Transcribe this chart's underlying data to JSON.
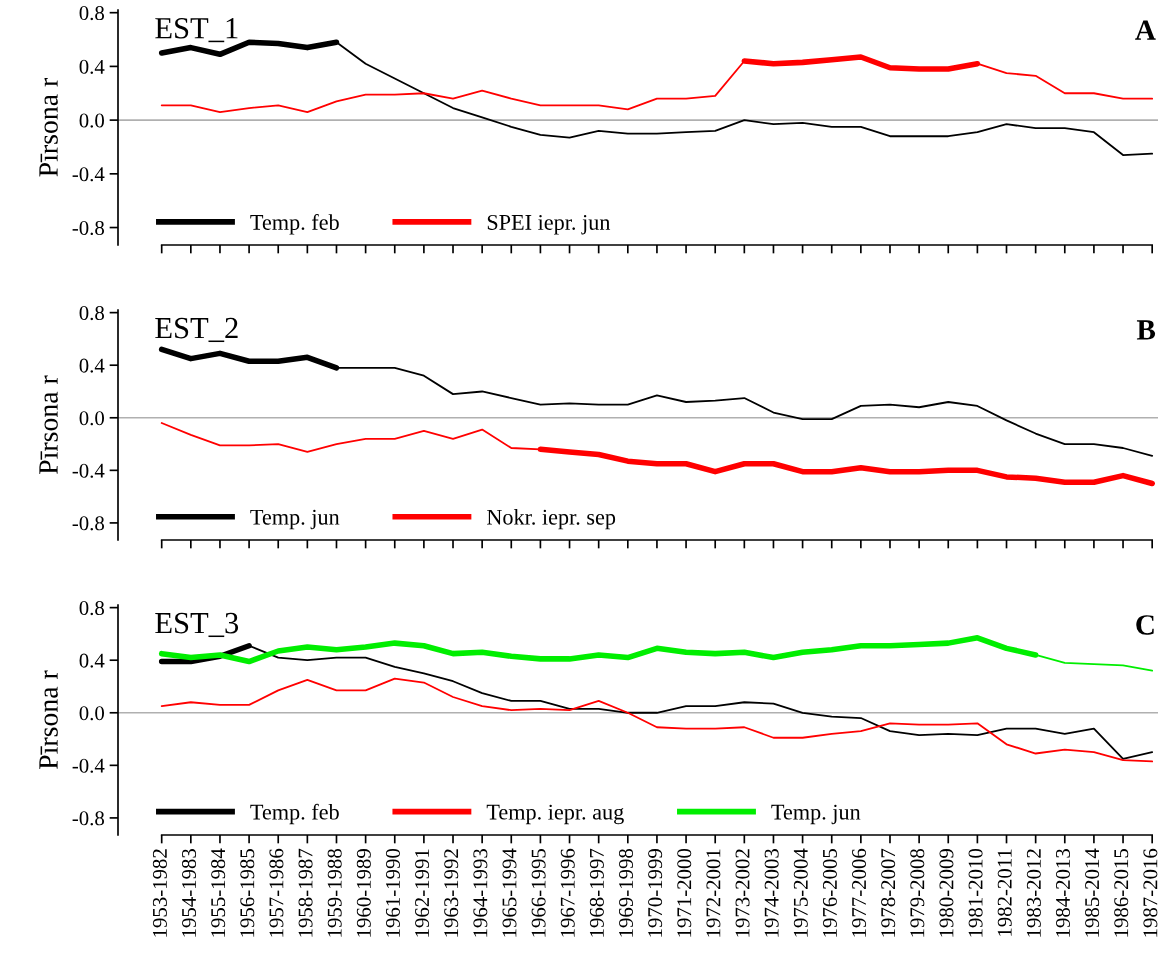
{
  "chart_data": [
    {
      "type": "line",
      "title": "EST_1",
      "ylabel": "Pīrsona r",
      "annotations": [
        "A"
      ],
      "tick_labels": "y",
      "categories": [
        null,
        null,
        null,
        null,
        null,
        null,
        null,
        null,
        null,
        null,
        null,
        null,
        null,
        null,
        null,
        null,
        null,
        null,
        null,
        null,
        null,
        null,
        null,
        null,
        null,
        null,
        null,
        null,
        null,
        null,
        null,
        null,
        null,
        null,
        null
      ],
      "ylim": [
        -0.93,
        0.82
      ],
      "yticks": [
        {
          "value": -0.8,
          "label": "-0.8"
        },
        {
          "value": -0.4,
          "label": "-0.4"
        },
        {
          "value": 0,
          "label": "0.0"
        },
        {
          "value": 0.4,
          "label": "0.4"
        },
        {
          "value": 0.8,
          "label": "0.8"
        }
      ],
      "ref_lines": [
        {
          "axis": "y",
          "value": 0,
          "color": "#b0b0b0"
        }
      ],
      "legend": "bottom",
      "grid": false,
      "series": [
        {
          "color": "#000000",
          "values": [
            0.5,
            0.54,
            0.49,
            0.58,
            0.57,
            0.54,
            0.58,
            0.42,
            0.31,
            0.2,
            0.09,
            0.02,
            -0.05,
            -0.11,
            -0.13,
            -0.08,
            -0.1,
            -0.1,
            -0.09,
            -0.08,
            0.0,
            -0.03,
            -0.02,
            -0.05,
            -0.05,
            -0.12,
            -0.12,
            -0.12,
            -0.09,
            -0.03,
            -0.06,
            -0.06,
            -0.09,
            -0.26,
            -0.25
          ]
        },
        {
          "name": "Temp. feb",
          "color": "#000000",
          "values": [
            0.5,
            0.54,
            0.49,
            0.58,
            0.57,
            0.54,
            0.58,
            null,
            null,
            null,
            null,
            null,
            null,
            null,
            null,
            null,
            null,
            null,
            null,
            null,
            null,
            null,
            null,
            null,
            null,
            null,
            null,
            null,
            null,
            null,
            null,
            null,
            null,
            null,
            null
          ]
        },
        {
          "color": "#ff0000",
          "values": [
            0.11,
            0.11,
            0.06,
            0.09,
            0.11,
            0.06,
            0.14,
            0.19,
            0.19,
            0.2,
            0.16,
            0.22,
            0.16,
            0.11,
            0.11,
            0.11,
            0.08,
            0.16,
            0.16,
            0.18,
            0.44,
            0.42,
            0.43,
            0.45,
            0.47,
            0.39,
            0.38,
            0.38,
            0.42,
            0.35,
            0.33,
            0.2,
            0.2,
            0.16,
            0.16
          ]
        },
        {
          "name": "SPEI iepr. jun",
          "color": "#ff0000",
          "values": [
            null,
            null,
            null,
            null,
            null,
            null,
            null,
            null,
            null,
            null,
            null,
            null,
            null,
            null,
            null,
            null,
            null,
            null,
            null,
            null,
            0.44,
            0.42,
            0.43,
            0.45,
            0.47,
            0.39,
            0.38,
            0.38,
            0.42,
            null,
            null,
            null,
            null,
            null,
            null
          ]
        }
      ]
    },
    {
      "type": "line",
      "title": "EST_2",
      "ylabel": "Pīrsona r",
      "annotations": [
        "B"
      ],
      "tick_labels": "y",
      "categories": [
        null,
        null,
        null,
        null,
        null,
        null,
        null,
        null,
        null,
        null,
        null,
        null,
        null,
        null,
        null,
        null,
        null,
        null,
        null,
        null,
        null,
        null,
        null,
        null,
        null,
        null,
        null,
        null,
        null,
        null,
        null,
        null,
        null,
        null,
        null
      ],
      "ylim": [
        -0.93,
        0.82
      ],
      "yticks": [
        {
          "value": -0.8,
          "label": "-0.8"
        },
        {
          "value": -0.4,
          "label": "-0.4"
        },
        {
          "value": 0,
          "label": "0.0"
        },
        {
          "value": 0.4,
          "label": "0.4"
        },
        {
          "value": 0.8,
          "label": "0.8"
        }
      ],
      "ref_lines": [
        {
          "axis": "y",
          "value": 0,
          "color": "#b0b0b0"
        }
      ],
      "legend": "bottom",
      "grid": false,
      "series": [
        {
          "color": "#000000",
          "values": [
            0.52,
            0.45,
            0.49,
            0.43,
            0.43,
            0.46,
            0.38,
            0.38,
            0.38,
            0.32,
            0.18,
            0.2,
            0.15,
            0.1,
            0.11,
            0.1,
            0.1,
            0.17,
            0.12,
            0.13,
            0.15,
            0.04,
            -0.01,
            -0.01,
            0.09,
            0.1,
            0.08,
            0.12,
            0.09,
            -0.02,
            -0.12,
            -0.2,
            -0.2,
            -0.23,
            -0.29
          ]
        },
        {
          "name": "Temp. jun",
          "color": "#000000",
          "values": [
            0.52,
            0.45,
            0.49,
            0.43,
            0.43,
            0.46,
            0.38,
            null,
            null,
            null,
            null,
            null,
            null,
            null,
            null,
            null,
            null,
            null,
            null,
            null,
            null,
            null,
            null,
            null,
            null,
            null,
            null,
            null,
            null,
            null,
            null,
            null,
            null,
            null,
            null
          ]
        },
        {
          "color": "#ff0000",
          "values": [
            -0.04,
            -0.13,
            -0.21,
            -0.21,
            -0.2,
            -0.26,
            -0.2,
            -0.16,
            -0.16,
            -0.1,
            -0.16,
            -0.09,
            -0.23,
            -0.24,
            -0.26,
            -0.28,
            -0.33,
            -0.35,
            -0.35,
            -0.41,
            -0.35,
            -0.35,
            -0.41,
            -0.41,
            -0.38,
            -0.41,
            -0.41,
            -0.4,
            -0.4,
            -0.45,
            -0.46,
            -0.49,
            -0.49,
            -0.44,
            -0.5
          ]
        },
        {
          "name": "Nokr. iepr. sep",
          "color": "#ff0000",
          "values": [
            null,
            null,
            null,
            null,
            null,
            null,
            null,
            null,
            null,
            null,
            null,
            null,
            null,
            -0.24,
            -0.26,
            -0.28,
            -0.33,
            -0.35,
            -0.35,
            -0.41,
            -0.35,
            -0.35,
            -0.41,
            -0.41,
            -0.38,
            -0.41,
            -0.41,
            -0.4,
            -0.4,
            -0.45,
            -0.46,
            -0.49,
            -0.49,
            -0.44,
            -0.5
          ]
        }
      ]
    },
    {
      "type": "line",
      "title": "EST_3",
      "ylabel": "Pīrsona r",
      "annotations": [
        "C"
      ],
      "categories": [
        "1953-1982",
        "1954-1983",
        "1955-1984",
        "1956-1985",
        "1957-1986",
        "1958-1987",
        "1959-1988",
        "1960-1989",
        "1961-1990",
        "1962-1991",
        "1963-1992",
        "1964-1993",
        "1965-1994",
        "1966-1995",
        "1967-1996",
        "1968-1997",
        "1969-1998",
        "1970-1999",
        "1971-2000",
        "1972-2001",
        "1973-2002",
        "1974-2003",
        "1975-2004",
        "1976-2005",
        "1977-2006",
        "1978-2007",
        "1979-2008",
        "1980-2009",
        "1981-2010",
        "1982-2011",
        "1983-2012",
        "1984-2013",
        "1985-2014",
        "1986-2015",
        "1987-2016"
      ],
      "ylim": [
        -0.93,
        0.82
      ],
      "yticks": [
        {
          "value": -0.8,
          "label": "-0.8"
        },
        {
          "value": -0.4,
          "label": "-0.4"
        },
        {
          "value": 0,
          "label": "0.0"
        },
        {
          "value": 0.4,
          "label": "0.4"
        },
        {
          "value": 0.8,
          "label": "0.8"
        }
      ],
      "ref_lines": [
        {
          "axis": "y",
          "value": 0,
          "color": "#b0b0b0"
        }
      ],
      "legend": "bottom",
      "grid": false,
      "series": [
        {
          "color": "#000000",
          "values": [
            0.39,
            0.39,
            0.43,
            0.51,
            0.42,
            0.4,
            0.42,
            0.42,
            0.35,
            0.3,
            0.24,
            0.15,
            0.09,
            0.09,
            0.03,
            0.03,
            0.0,
            0.0,
            0.05,
            0.05,
            0.08,
            0.07,
            0.0,
            -0.03,
            -0.04,
            -0.14,
            -0.17,
            -0.16,
            -0.17,
            -0.12,
            -0.12,
            -0.16,
            -0.12,
            -0.35,
            -0.3
          ]
        },
        {
          "name": "Temp. feb",
          "color": "#000000",
          "values": [
            0.39,
            0.39,
            0.43,
            0.51,
            null,
            null,
            null,
            null,
            null,
            null,
            null,
            null,
            null,
            null,
            null,
            null,
            null,
            null,
            null,
            null,
            null,
            null,
            null,
            null,
            null,
            null,
            null,
            null,
            null,
            null,
            null,
            null,
            null,
            null,
            null
          ]
        },
        {
          "name": "Temp. iepr. aug",
          "color": "#ff0000",
          "values": [
            0.05,
            0.08,
            0.06,
            0.06,
            0.17,
            0.25,
            0.17,
            0.17,
            0.26,
            0.23,
            0.12,
            0.05,
            0.02,
            0.03,
            0.02,
            0.09,
            0.0,
            -0.11,
            -0.12,
            -0.12,
            -0.11,
            -0.19,
            -0.19,
            -0.16,
            -0.14,
            -0.08,
            -0.09,
            -0.09,
            -0.08,
            -0.24,
            -0.31,
            -0.28,
            -0.3,
            -0.36,
            -0.37
          ]
        },
        {
          "color": "#00ee00",
          "values": [
            0.45,
            0.42,
            0.44,
            0.39,
            0.47,
            0.5,
            0.48,
            0.5,
            0.53,
            0.51,
            0.45,
            0.46,
            0.43,
            0.41,
            0.41,
            0.44,
            0.42,
            0.49,
            0.46,
            0.45,
            0.46,
            0.42,
            0.46,
            0.48,
            0.51,
            0.51,
            0.52,
            0.53,
            0.57,
            0.49,
            0.44,
            0.38,
            0.37,
            0.36,
            0.32
          ]
        },
        {
          "name": "Temp. jun",
          "color": "#00ee00",
          "values": [
            0.45,
            0.42,
            0.44,
            0.39,
            0.47,
            0.5,
            0.48,
            0.5,
            0.53,
            0.51,
            0.45,
            0.46,
            0.43,
            0.41,
            0.41,
            0.44,
            0.42,
            0.49,
            0.46,
            0.45,
            0.46,
            0.42,
            0.46,
            0.48,
            0.51,
            0.51,
            0.52,
            0.53,
            0.57,
            0.49,
            0.44,
            null,
            null,
            null,
            null
          ]
        }
      ]
    }
  ]
}
